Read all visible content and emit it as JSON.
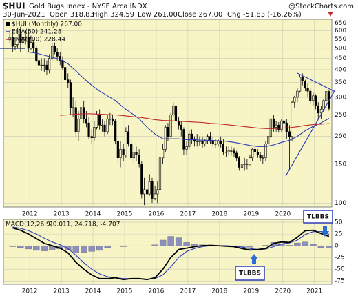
{
  "chart_data": [
    {
      "type": "candlestick",
      "symbol": "$HUI",
      "title": "Gold Bugs Index - NYSE Arca INDX",
      "source": "@StockCharts.com",
      "date": "30-Jun-2021",
      "quote": [
        "Open 318.83",
        "High 324.59",
        "Low 261.00",
        "Close 267.00",
        "Chg -51.83 (-16.26%)"
      ],
      "name": "$HUI (Monthly) 267.00",
      "color": "#000000",
      "background": "#f7f5c6",
      "grid": true,
      "log_scale": true,
      "legend": "top-left",
      "x": [
        2011.37,
        2011.46,
        2011.54,
        2011.62,
        2011.71,
        2011.79,
        2011.87,
        2011.96,
        2012.04,
        2012.12,
        2012.21,
        2012.29,
        2012.37,
        2012.46,
        2012.54,
        2012.62,
        2012.71,
        2012.79,
        2012.87,
        2012.96,
        2013.04,
        2013.12,
        2013.21,
        2013.29,
        2013.37,
        2013.46,
        2013.54,
        2013.62,
        2013.71,
        2013.79,
        2013.87,
        2013.96,
        2014.04,
        2014.12,
        2014.21,
        2014.29,
        2014.37,
        2014.46,
        2014.54,
        2014.62,
        2014.71,
        2014.79,
        2014.87,
        2014.96,
        2015.04,
        2015.12,
        2015.21,
        2015.29,
        2015.37,
        2015.46,
        2015.54,
        2015.62,
        2015.71,
        2015.79,
        2015.87,
        2015.96,
        2016.04,
        2016.12,
        2016.21,
        2016.29,
        2016.37,
        2016.46,
        2016.54,
        2016.62,
        2016.71,
        2016.79,
        2016.87,
        2016.96,
        2017.04,
        2017.12,
        2017.21,
        2017.29,
        2017.37,
        2017.46,
        2017.54,
        2017.62,
        2017.71,
        2017.79,
        2017.87,
        2017.96,
        2018.04,
        2018.12,
        2018.21,
        2018.29,
        2018.37,
        2018.46,
        2018.54,
        2018.62,
        2018.71,
        2018.79,
        2018.87,
        2018.96,
        2019.04,
        2019.12,
        2019.21,
        2019.29,
        2019.37,
        2019.46,
        2019.54,
        2019.62,
        2019.71,
        2019.79,
        2019.87,
        2019.96,
        2020.04,
        2020.12,
        2020.21,
        2020.29,
        2020.37,
        2020.46,
        2020.54,
        2020.62,
        2020.71,
        2020.79,
        2020.87,
        2020.96,
        2021.04,
        2021.12,
        2021.21,
        2021.29,
        2021.37,
        2021.46
      ],
      "open": [
        545,
        560,
        510,
        520,
        580,
        530,
        560,
        560,
        500,
        530,
        500,
        440,
        420,
        420,
        420,
        400,
        450,
        510,
        480,
        460,
        440,
        410,
        360,
        350,
        270,
        270,
        210,
        240,
        270,
        240,
        230,
        200,
        197,
        220,
        250,
        225,
        225,
        210,
        240,
        240,
        235,
        190,
        160,
        175,
        165,
        210,
        185,
        160,
        170,
        165,
        150,
        110,
        115,
        110,
        125,
        105,
        110,
        115,
        160,
        175,
        220,
        200,
        250,
        275,
        235,
        225,
        215,
        175,
        180,
        205,
        195,
        190,
        190,
        190,
        185,
        190,
        200,
        190,
        185,
        185,
        190,
        185,
        170,
        170,
        172,
        172,
        168,
        160,
        145,
        150,
        150,
        150,
        160,
        175,
        170,
        165,
        160,
        160,
        185,
        200,
        240,
        220,
        225,
        215,
        235,
        230,
        210,
        200,
        285,
        300,
        320,
        370,
        355,
        330,
        320,
        290,
        305,
        275,
        255,
        265,
        290,
        318.83
      ],
      "high": [
        600,
        590,
        560,
        620,
        625,
        590,
        600,
        600,
        570,
        545,
        510,
        460,
        450,
        450,
        440,
        470,
        530,
        530,
        500,
        480,
        460,
        425,
        385,
        360,
        300,
        290,
        260,
        300,
        290,
        260,
        245,
        215,
        235,
        260,
        265,
        240,
        235,
        250,
        255,
        250,
        240,
        200,
        190,
        185,
        220,
        225,
        195,
        180,
        180,
        175,
        155,
        130,
        125,
        135,
        130,
        120,
        125,
        170,
        185,
        225,
        230,
        255,
        285,
        280,
        245,
        235,
        220,
        190,
        215,
        215,
        200,
        205,
        200,
        200,
        195,
        205,
        210,
        200,
        195,
        195,
        200,
        195,
        180,
        180,
        180,
        178,
        172,
        163,
        155,
        160,
        158,
        165,
        178,
        185,
        175,
        170,
        165,
        190,
        205,
        245,
        250,
        235,
        232,
        240,
        245,
        240,
        225,
        290,
        305,
        330,
        380,
        385,
        360,
        345,
        330,
        315,
        310,
        285,
        275,
        295,
        320,
        324.59
      ],
      "low": [
        530,
        480,
        490,
        500,
        480,
        500,
        520,
        480,
        490,
        480,
        430,
        405,
        395,
        390,
        380,
        385,
        440,
        470,
        440,
        420,
        400,
        350,
        330,
        250,
        245,
        200,
        190,
        230,
        230,
        220,
        195,
        185,
        190,
        215,
        215,
        210,
        200,
        205,
        225,
        225,
        185,
        150,
        145,
        155,
        160,
        180,
        155,
        150,
        155,
        145,
        105,
        98,
        102,
        108,
        100,
        103,
        100,
        110,
        150,
        170,
        190,
        200,
        245,
        230,
        215,
        200,
        165,
        165,
        175,
        185,
        180,
        180,
        182,
        178,
        180,
        185,
        185,
        180,
        178,
        180,
        178,
        165,
        162,
        164,
        164,
        162,
        155,
        140,
        138,
        140,
        142,
        148,
        155,
        165,
        160,
        155,
        150,
        155,
        180,
        195,
        210,
        210,
        208,
        210,
        220,
        195,
        140,
        190,
        270,
        285,
        315,
        340,
        320,
        300,
        280,
        275,
        265,
        240,
        240,
        258,
        285,
        261
      ],
      "close": [
        560,
        510,
        520,
        580,
        530,
        560,
        560,
        500,
        530,
        500,
        440,
        420,
        420,
        420,
        400,
        450,
        510,
        480,
        460,
        440,
        410,
        360,
        350,
        270,
        270,
        210,
        240,
        270,
        240,
        230,
        200,
        197,
        220,
        250,
        225,
        225,
        210,
        240,
        240,
        235,
        190,
        160,
        175,
        165,
        210,
        185,
        160,
        170,
        165,
        150,
        110,
        115,
        110,
        125,
        105,
        110,
        115,
        160,
        175,
        220,
        200,
        250,
        275,
        235,
        225,
        215,
        175,
        180,
        205,
        195,
        190,
        190,
        190,
        185,
        190,
        200,
        190,
        185,
        185,
        190,
        185,
        170,
        170,
        172,
        172,
        168,
        160,
        145,
        150,
        150,
        150,
        160,
        175,
        170,
        165,
        160,
        160,
        185,
        200,
        240,
        220,
        225,
        215,
        235,
        230,
        210,
        200,
        285,
        300,
        320,
        370,
        355,
        330,
        320,
        290,
        305,
        275,
        255,
        265,
        290,
        318.83,
        267
      ],
      "series": [
        {
          "name": "EMA(50) 241.28",
          "color": "#2b3bb5",
          "x": [
            2011.46,
            2011.71,
            2011.96,
            2012.21,
            2012.46,
            2012.71,
            2012.96,
            2013.21,
            2013.46,
            2013.71,
            2013.96,
            2014.21,
            2014.46,
            2014.71,
            2014.96,
            2015.21,
            2015.46,
            2015.71,
            2015.96,
            2016.21,
            2016.46,
            2016.71,
            2016.96,
            2017.21,
            2017.46,
            2017.71,
            2017.96,
            2018.21,
            2018.46,
            2018.71,
            2018.96,
            2019.21,
            2019.46,
            2019.71,
            2019.96,
            2020.21,
            2020.46,
            2020.71,
            2020.96,
            2021.21,
            2021.46
          ],
          "values": [
            480,
            480,
            480,
            475,
            465,
            455,
            445,
            425,
            395,
            365,
            340,
            320,
            305,
            290,
            270,
            255,
            240,
            220,
            205,
            195,
            195,
            195,
            193,
            193,
            192,
            192,
            191,
            190,
            188,
            185,
            182,
            180,
            180,
            183,
            188,
            192,
            200,
            212,
            222,
            230,
            241.28
          ]
        },
        {
          "name": "EMA(200) 228.44",
          "color": "#c0262b",
          "x": [
            2011.46,
            2011.71,
            2011.96,
            2012.21,
            2012.46,
            2012.71,
            2012.96,
            2013.21,
            2013.46,
            2013.71,
            2013.96,
            2014.21,
            2014.46,
            2014.71,
            2014.96,
            2015.21,
            2015.46,
            2015.71,
            2015.96,
            2016.21,
            2016.46,
            2016.71,
            2016.96,
            2017.21,
            2017.46,
            2017.71,
            2017.96,
            2018.21,
            2018.46,
            2018.71,
            2018.96,
            2019.21,
            2019.46,
            2019.71,
            2019.96,
            2020.21,
            2020.46,
            2020.71,
            2020.96,
            2021.21,
            2021.46
          ],
          "values": [
            null,
            null,
            null,
            null,
            null,
            null,
            249,
            250,
            252,
            253,
            253,
            252,
            251,
            250,
            248,
            246,
            244,
            241,
            238,
            236,
            235,
            234,
            233,
            232,
            231,
            229,
            228,
            226,
            224,
            222,
            220,
            218,
            217,
            217,
            218,
            219,
            221,
            224,
            226,
            227,
            228.44
          ]
        }
      ],
      "xlim": [
        2011.17,
        2021.55
      ],
      "xticks": [
        2012,
        2013,
        2014,
        2015,
        2016,
        2017,
        2018,
        2019,
        2020,
        2021
      ],
      "ylim": [
        96,
        675
      ],
      "yticks": [
        100,
        150,
        200,
        250,
        300,
        350,
        400,
        450,
        500,
        550,
        600,
        650
      ]
    },
    {
      "type": "line",
      "title": "MACD(12,26,9)",
      "value_text": "20.011, 24.718, -4.707",
      "background": "#f7f5c6",
      "grid": true,
      "x": [
        2011.46,
        2011.71,
        2011.96,
        2012.21,
        2012.46,
        2012.71,
        2012.96,
        2013.21,
        2013.46,
        2013.71,
        2013.96,
        2014.21,
        2014.46,
        2014.71,
        2014.96,
        2015.21,
        2015.46,
        2015.71,
        2015.96,
        2016.21,
        2016.46,
        2016.71,
        2016.96,
        2017.21,
        2017.46,
        2017.71,
        2017.96,
        2018.21,
        2018.46,
        2018.71,
        2018.96,
        2019.21,
        2019.46,
        2019.71,
        2019.96,
        2020.21,
        2020.46,
        2020.71,
        2020.96,
        2021.21,
        2021.46
      ],
      "series": [
        {
          "type": "bar",
          "color": "#8d90bd",
          "values": [
            -2,
            -4,
            -7,
            -10,
            -11,
            -8,
            -7,
            -9,
            -15,
            -14,
            -12,
            -10,
            -4,
            0,
            -2,
            0,
            0,
            -1,
            2,
            12,
            20,
            17,
            7,
            4,
            2,
            1,
            0,
            -1,
            -1,
            -3,
            -3,
            0,
            1,
            7,
            4,
            1,
            6,
            8,
            3,
            -4,
            -4.707
          ]
        },
        {
          "type": "line",
          "color": "#2b3bb5",
          "values": [
            40,
            37,
            32,
            25,
            16,
            8,
            2,
            -6,
            -20,
            -36,
            -50,
            -60,
            -66,
            -68,
            -70,
            -70,
            -70,
            -71,
            -70,
            -62,
            -45,
            -25,
            -12,
            -6,
            -2,
            0,
            0,
            0,
            -1,
            -3,
            -6,
            -8,
            -7,
            -2,
            4,
            6,
            12,
            24,
            30,
            30,
            24.718
          ]
        },
        {
          "type": "line",
          "color": "#000000",
          "values": [
            38,
            33,
            25,
            15,
            5,
            0,
            -5,
            -15,
            -35,
            -50,
            -62,
            -70,
            -70,
            -68,
            -72,
            -70,
            -70,
            -72,
            -68,
            -50,
            -25,
            -8,
            -5,
            -2,
            0,
            1,
            0,
            -1,
            -2,
            -6,
            -9,
            -8,
            -6,
            5,
            8,
            7,
            18,
            32,
            33,
            26,
            20.011
          ]
        }
      ],
      "annotations": [
        "TLBBS",
        "TLBBS"
      ],
      "xlim": [
        2011.17,
        2021.55
      ],
      "xticks": [
        2012,
        2013,
        2014,
        2015,
        2016,
        2017,
        2018,
        2019,
        2020,
        2021
      ],
      "ylim": [
        -82,
        56
      ],
      "yticks": [
        50,
        25,
        0,
        -25,
        -50,
        -75
      ]
    }
  ]
}
